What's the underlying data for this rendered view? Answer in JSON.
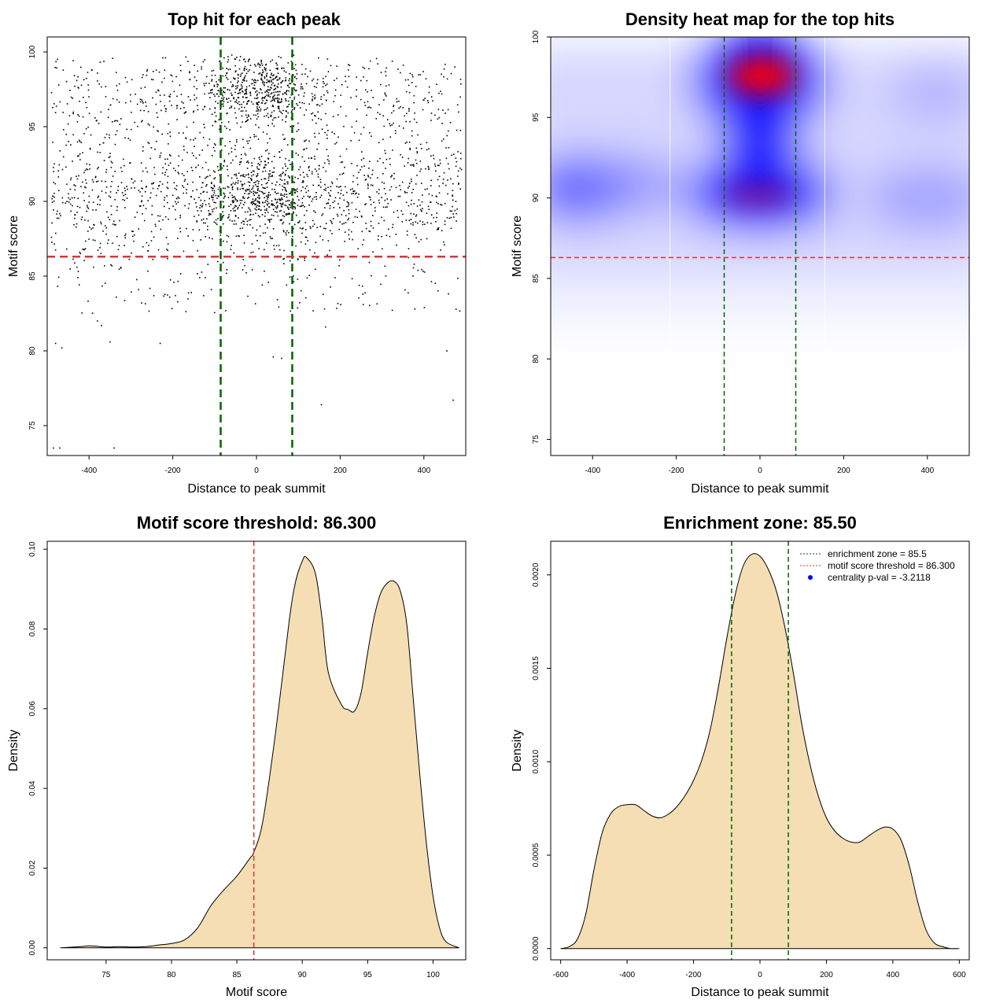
{
  "chart_data": [
    {
      "id": "scatter",
      "type": "scatter",
      "title": "Top hit for each peak",
      "xlabel": "Distance to peak summit",
      "ylabel": "Motif score",
      "xlim": [
        -500,
        500
      ],
      "ylim": [
        73,
        101
      ],
      "xticks": [
        -400,
        -200,
        0,
        200,
        400
      ],
      "yticks": [
        75,
        80,
        85,
        90,
        95,
        100
      ],
      "vlines": [
        -85.5,
        85.5
      ],
      "hline": 86.3,
      "sparse_points": [
        {
          "x": -485,
          "y": 73.5
        },
        {
          "x": -470,
          "y": 73.5
        },
        {
          "x": -340,
          "y": 73.5
        },
        {
          "x": 155,
          "y": 76.4
        },
        {
          "x": 470,
          "y": 76.7
        },
        {
          "x": -480,
          "y": 80.5
        },
        {
          "x": -465,
          "y": 80.2
        },
        {
          "x": -350,
          "y": 80.6
        },
        {
          "x": -230,
          "y": 80.5
        },
        {
          "x": 40,
          "y": 79.6
        },
        {
          "x": 60,
          "y": 79.5
        },
        {
          "x": 455,
          "y": 80.0
        },
        {
          "x": -370,
          "y": 81.7
        },
        {
          "x": 165,
          "y": 81.6
        },
        {
          "x": -380,
          "y": 82.0
        }
      ]
    },
    {
      "id": "heatmap",
      "type": "heatmap",
      "title": "Density heat map for the top hits",
      "xlabel": "Distance to peak summit",
      "ylabel": "Motif score",
      "xlim": [
        -500,
        500
      ],
      "ylim": [
        74,
        100
      ],
      "xticks": [
        -400,
        -200,
        0,
        200,
        400
      ],
      "yticks": [
        75,
        80,
        85,
        90,
        95,
        100
      ],
      "vlines": [
        -85.5,
        85.5
      ],
      "hline": 86.3,
      "density_peaks": [
        {
          "x": 0,
          "y": 97.5,
          "level": "max"
        },
        {
          "x": 0,
          "y": 90.2,
          "level": "high"
        },
        {
          "x": -420,
          "y": 90.5,
          "level": "medium"
        },
        {
          "x": 420,
          "y": 89.8,
          "level": "low"
        }
      ]
    },
    {
      "id": "score_density",
      "type": "area",
      "title": "Motif score threshold: 86.300",
      "xlabel": "Motif score",
      "ylabel": "Density",
      "xlim": [
        70.5,
        102.5
      ],
      "ylim": [
        -0.003,
        0.102
      ],
      "xticks": [
        75,
        80,
        85,
        90,
        95,
        100
      ],
      "yticks": [
        "0.00",
        "0.02",
        "0.04",
        "0.06",
        "0.08",
        "0.10"
      ],
      "vline": 86.3,
      "x": [
        71.5,
        73,
        73.8,
        75,
        76,
        77,
        78,
        79,
        80,
        81,
        82,
        83,
        84,
        85,
        86,
        86.3,
        87,
        88,
        89,
        89.5,
        90,
        90.3,
        91,
        91.5,
        92,
        93,
        93.5,
        94,
        94.5,
        95,
        95.5,
        96,
        96.5,
        97,
        97.5,
        98,
        98.5,
        99,
        99.5,
        100,
        100.5,
        101,
        102
      ],
      "y": [
        0,
        0.0003,
        0.0005,
        0.0002,
        0.0003,
        0.0002,
        0.0003,
        0.0007,
        0.0011,
        0.002,
        0.005,
        0.0105,
        0.0145,
        0.018,
        0.0225,
        0.024,
        0.032,
        0.055,
        0.082,
        0.092,
        0.097,
        0.098,
        0.094,
        0.083,
        0.069,
        0.061,
        0.0598,
        0.0594,
        0.064,
        0.074,
        0.083,
        0.089,
        0.0915,
        0.092,
        0.0895,
        0.081,
        0.062,
        0.043,
        0.026,
        0.013,
        0.005,
        0.0015,
        0
      ]
    },
    {
      "id": "distance_density",
      "type": "area",
      "title": "Enrichment zone: 85.50",
      "xlabel": "Distance to peak summit",
      "ylabel": "Density",
      "xlim": [
        -630,
        630
      ],
      "ylim": [
        -6e-05,
        0.00218
      ],
      "xticks": [
        -600,
        -400,
        -200,
        0,
        200,
        400,
        600
      ],
      "yticks": [
        "0.0000",
        "0.0005",
        "0.0010",
        "0.0015",
        "0.0020"
      ],
      "vlines": [
        -85.5,
        85.5
      ],
      "x": [
        -600,
        -575,
        -550,
        -525,
        -500,
        -475,
        -450,
        -425,
        -400,
        -375,
        -350,
        -325,
        -300,
        -275,
        -250,
        -225,
        -200,
        -175,
        -150,
        -125,
        -100,
        -75,
        -50,
        -25,
        0,
        25,
        50,
        75,
        100,
        125,
        150,
        175,
        200,
        225,
        250,
        275,
        300,
        325,
        350,
        375,
        400,
        425,
        450,
        475,
        500,
        525,
        550,
        575,
        600
      ],
      "y": [
        0,
        1e-05,
        5e-05,
        0.00018,
        0.00042,
        0.00062,
        0.00072,
        0.00076,
        0.00077,
        0.00077,
        0.00074,
        0.00071,
        0.0007,
        0.00072,
        0.00076,
        0.00082,
        0.0009,
        0.00101,
        0.00117,
        0.0014,
        0.00166,
        0.00189,
        0.00205,
        0.00211,
        0.0021,
        0.00203,
        0.00191,
        0.00172,
        0.00148,
        0.00121,
        0.00099,
        0.00082,
        0.0007,
        0.00063,
        0.00059,
        0.00057,
        0.00057,
        0.0006,
        0.00063,
        0.00065,
        0.00064,
        0.00058,
        0.00044,
        0.00025,
        0.0001,
        3e-05,
        1e-05,
        0,
        0
      ],
      "legend": {
        "position": "top-right",
        "entries": [
          {
            "label": "enrichment zone = 85.5",
            "color": "#006400",
            "style": "dotted-line"
          },
          {
            "label": "motif score threshold = 86.300",
            "color": "#dd3333",
            "style": "dotted-line"
          },
          {
            "label": "centrality p-val = -3.2118",
            "color": "#0000ff",
            "style": "dot"
          }
        ]
      }
    }
  ],
  "colors": {
    "fill": "#f5deb3",
    "green": "#006400",
    "red": "#dd3333",
    "heat_low": "#ffffff",
    "heat_mid": "#0000ff",
    "heat_high": "#ff0000"
  }
}
